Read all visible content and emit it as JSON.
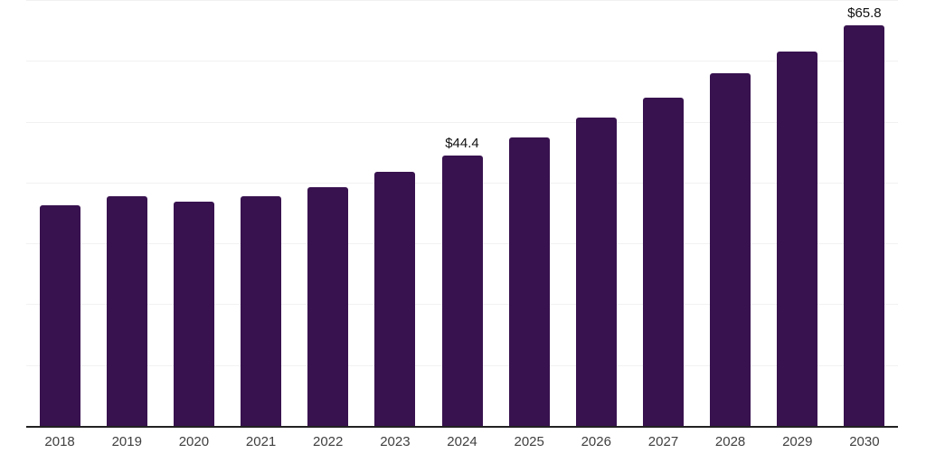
{
  "chart": {
    "background": "#ffffff",
    "bar_color": "#38124f",
    "axis_color": "#222222",
    "gridline_color": "#f1f1f2",
    "tick_label_color": "#404040",
    "data_label_color": "#111111"
  },
  "chart_data": {
    "type": "bar",
    "title": "",
    "xlabel": "",
    "ylabel": "",
    "categories": [
      "2018",
      "2019",
      "2020",
      "2021",
      "2022",
      "2023",
      "2024",
      "2025",
      "2026",
      "2027",
      "2028",
      "2029",
      "2030"
    ],
    "values": [
      36.2,
      37.7,
      36.9,
      37.8,
      39.3,
      41.7,
      44.4,
      47.4,
      50.7,
      54.0,
      57.9,
      61.6,
      65.8
    ],
    "data_labels": [
      {
        "category": "2024",
        "text": "$44.4"
      },
      {
        "category": "2030",
        "text": "$65.8"
      }
    ],
    "ylim": [
      0,
      70
    ],
    "grid_step": 10,
    "grid": "horizontal-only",
    "y_tick_labels_shown": false,
    "legend": "none"
  }
}
